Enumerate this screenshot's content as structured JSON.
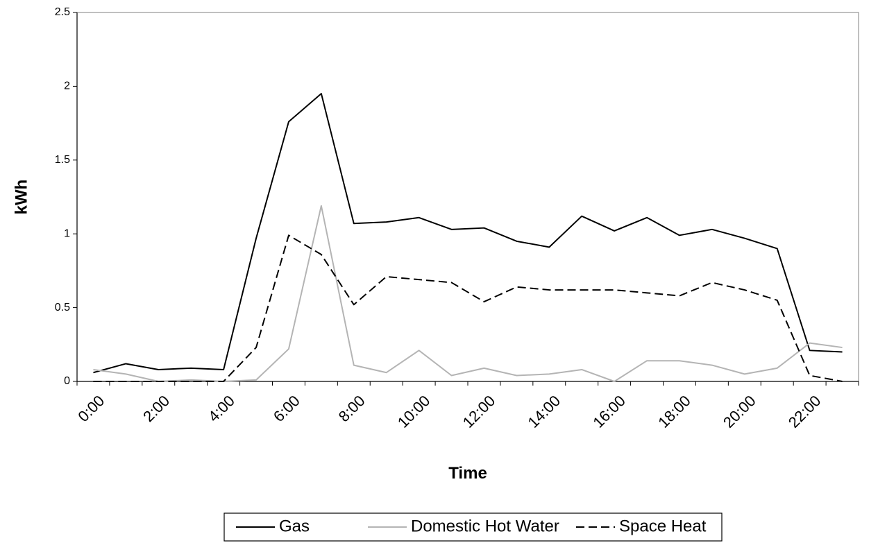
{
  "chart_data": {
    "type": "line",
    "x_label": "Time",
    "y_label": "kWh",
    "categories": [
      "0:00",
      null,
      "2:00",
      null,
      "4:00",
      null,
      "6:00",
      null,
      "8:00",
      null,
      "10:00",
      null,
      "12:00",
      null,
      "14:00",
      null,
      "16:00",
      null,
      "18:00",
      null,
      "20:00",
      null,
      "22:00",
      null
    ],
    "series": [
      {
        "name": "Gas",
        "color": "#000000",
        "dash": "solid",
        "values": [
          0.06,
          0.12,
          0.08,
          0.09,
          0.08,
          0.97,
          1.76,
          1.95,
          1.07,
          1.08,
          1.11,
          1.03,
          1.04,
          0.95,
          0.91,
          1.12,
          1.02,
          1.11,
          0.99,
          1.03,
          0.97,
          0.9,
          0.21,
          0.2
        ]
      },
      {
        "name": "Domestic Hot Water",
        "color": "#b4b4b4",
        "dash": "solid",
        "values": [
          0.08,
          0.05,
          0.0,
          0.01,
          0.0,
          0.01,
          0.22,
          1.19,
          0.11,
          0.06,
          0.21,
          0.04,
          0.09,
          0.04,
          0.05,
          0.08,
          0.0,
          0.14,
          0.14,
          0.11,
          0.05,
          0.09,
          0.26,
          0.23
        ]
      },
      {
        "name": "Space Heat",
        "color": "#000000",
        "dash": "dashed",
        "values": [
          0.0,
          0.0,
          0.0,
          0.0,
          0.0,
          0.23,
          0.99,
          0.86,
          0.52,
          0.71,
          0.69,
          0.67,
          0.54,
          0.64,
          0.62,
          0.62,
          0.62,
          0.6,
          0.58,
          0.67,
          0.62,
          0.55,
          0.04,
          0.0
        ]
      }
    ],
    "ylim": [
      0,
      2.5
    ],
    "yticks": [
      0,
      0.5,
      1,
      1.5,
      2,
      2.5
    ],
    "grid": false,
    "legend": "bottom"
  }
}
